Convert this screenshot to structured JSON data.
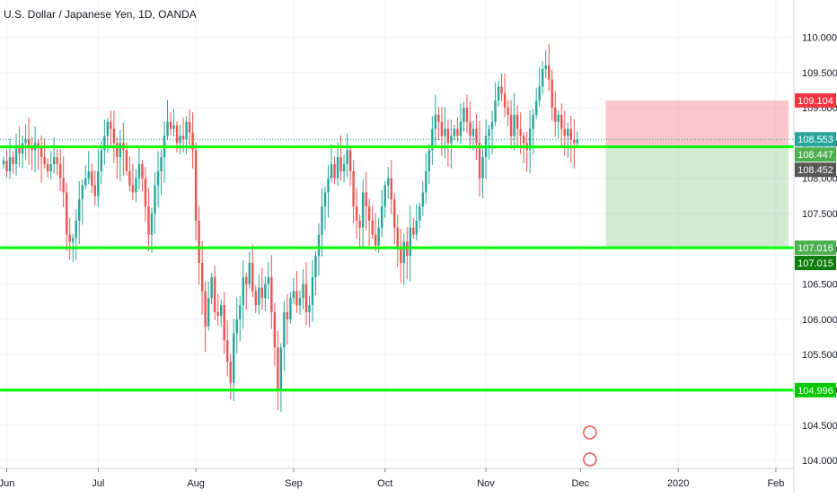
{
  "header": {
    "title": "U.S. Dollar / Japanese Yen, 1D, OANDA"
  },
  "chart_data": {
    "type": "candlestick",
    "title": "U.S. Dollar / Japanese Yen, 1D, OANDA",
    "ylim": [
      103.95,
      110.35
    ],
    "y_ticks": [
      "110.000",
      "109.500",
      "109.000",
      "108.500",
      "108.000",
      "107.500",
      "107.000",
      "106.500",
      "106.000",
      "105.500",
      "105.000",
      "104.500",
      "104.000"
    ],
    "x_ticks": [
      {
        "label": "Jun",
        "day": 1
      },
      {
        "label": "Jul",
        "day": 30
      },
      {
        "label": "Aug",
        "day": 61
      },
      {
        "label": "Sep",
        "day": 92
      },
      {
        "label": "Oct",
        "day": 121
      },
      {
        "label": "Nov",
        "day": 153
      },
      {
        "label": "Dec",
        "day": 183
      },
      {
        "label": "2020",
        "day": 214
      },
      {
        "label": "Feb",
        "day": 245
      }
    ],
    "grid": true,
    "horizontal_levels": [
      {
        "price": 108.447,
        "label": "108.447",
        "color": "#00ff00"
      },
      {
        "price": 107.015,
        "label": "107.015",
        "color": "#00ff00"
      },
      {
        "price": 104.996,
        "label": "104.996",
        "color": "#00ff00"
      }
    ],
    "current_price": {
      "price": 108.553,
      "label": "108.553",
      "color": "#26a69a"
    },
    "position": {
      "type": "short",
      "start_day": 191,
      "end_day": 258,
      "entry": 108.452,
      "stop": 109.104,
      "target": 107.016,
      "stop_label": "109.104",
      "entry_label": "108.452",
      "target_label": "107.016",
      "stop_color": "#f23645",
      "entry_color": "#555555",
      "target_color": "#22ab94"
    },
    "price_labels": [
      {
        "label": "109.104",
        "price": 109.104,
        "color": "#f23645"
      },
      {
        "label": "108.553",
        "price": 108.553,
        "color": "#26a69a"
      },
      {
        "label": "108.447",
        "price": 108.447,
        "color": "#4caf50"
      },
      {
        "label": "108.452",
        "price": 108.452,
        "color": "#555555"
      },
      {
        "label": "107.016",
        "price": 107.016,
        "color": "#4caf50"
      },
      {
        "label": "107.015",
        "price": 107.015,
        "color": "#0b7d0b"
      },
      {
        "label": "104.996",
        "price": 104.996,
        "color": "#00c800"
      }
    ],
    "candle_colors": {
      "up": "#26a69a",
      "down": "#ef5350"
    },
    "closes": [
      [
        0,
        108.25
      ],
      [
        1,
        108.1
      ],
      [
        2,
        108.3
      ],
      [
        3,
        108.2
      ],
      [
        4,
        108.45
      ],
      [
        5,
        108.35
      ],
      [
        6,
        108.5
      ],
      [
        7,
        108.55
      ],
      [
        8,
        108.45
      ],
      [
        9,
        108.4
      ],
      [
        10,
        108.5
      ],
      [
        11,
        108.45
      ],
      [
        12,
        108.3
      ],
      [
        13,
        108.2
      ],
      [
        14,
        108.1
      ],
      [
        15,
        108.2
      ],
      [
        16,
        108.3
      ],
      [
        17,
        108.2
      ],
      [
        18,
        108.0
      ],
      [
        19,
        107.8
      ],
      [
        20,
        107.2
      ],
      [
        21,
        107.1
      ],
      [
        22,
        107.15
      ],
      [
        23,
        107.4
      ],
      [
        24,
        107.7
      ],
      [
        25,
        107.9
      ],
      [
        26,
        108.0
      ],
      [
        27,
        108.1
      ],
      [
        28,
        107.9
      ],
      [
        29,
        107.75
      ],
      [
        30,
        108.1
      ],
      [
        31,
        108.4
      ],
      [
        32,
        108.6
      ],
      [
        33,
        108.8
      ],
      [
        34,
        108.7
      ],
      [
        35,
        108.5
      ],
      [
        36,
        108.3
      ],
      [
        37,
        108.5
      ],
      [
        38,
        108.4
      ],
      [
        39,
        108.1
      ],
      [
        40,
        107.9
      ],
      [
        41,
        107.8
      ],
      [
        42,
        108.0
      ],
      [
        43,
        108.2
      ],
      [
        44,
        108.0
      ],
      [
        45,
        107.6
      ],
      [
        46,
        107.2
      ],
      [
        47,
        107.5
      ],
      [
        48,
        107.9
      ],
      [
        49,
        108.1
      ],
      [
        50,
        108.3
      ],
      [
        51,
        108.6
      ],
      [
        52,
        108.8
      ],
      [
        53,
        108.7
      ],
      [
        54,
        108.75
      ],
      [
        55,
        108.5
      ],
      [
        56,
        108.6
      ],
      [
        57,
        108.55
      ],
      [
        58,
        108.8
      ],
      [
        59,
        108.65
      ],
      [
        60,
        108.4
      ],
      [
        61,
        107.4
      ],
      [
        62,
        106.8
      ],
      [
        63,
        106.4
      ],
      [
        64,
        105.9
      ],
      [
        65,
        106.3
      ],
      [
        66,
        106.6
      ],
      [
        67,
        106.1
      ],
      [
        68,
        106.05
      ],
      [
        69,
        106.2
      ],
      [
        70,
        105.7
      ],
      [
        71,
        105.4
      ],
      [
        72,
        105.1
      ],
      [
        73,
        105.8
      ],
      [
        74,
        106.0
      ],
      [
        75,
        106.2
      ],
      [
        76,
        106.6
      ],
      [
        77,
        106.5
      ],
      [
        78,
        106.8
      ],
      [
        79,
        106.4
      ],
      [
        80,
        106.2
      ],
      [
        81,
        106.45
      ],
      [
        82,
        106.3
      ],
      [
        83,
        106.5
      ],
      [
        84,
        106.6
      ],
      [
        85,
        106.1
      ],
      [
        86,
        105.6
      ],
      [
        87,
        104.996
      ],
      [
        88,
        105.6
      ],
      [
        89,
        106.1
      ],
      [
        90,
        106.0
      ],
      [
        91,
        106.3
      ],
      [
        92,
        106.4
      ],
      [
        93,
        106.2
      ],
      [
        94,
        106.3
      ],
      [
        95,
        106.5
      ],
      [
        96,
        106.1
      ],
      [
        97,
        106.2
      ],
      [
        98,
        106.6
      ],
      [
        99,
        106.9
      ],
      [
        100,
        107.2
      ],
      [
        101,
        107.6
      ],
      [
        102,
        107.8
      ],
      [
        103,
        108.0
      ],
      [
        104,
        108.2
      ],
      [
        105,
        108.0
      ],
      [
        106,
        108.3
      ],
      [
        107,
        108.1
      ],
      [
        108,
        108.2
      ],
      [
        109,
        108.4
      ],
      [
        110,
        108.1
      ],
      [
        111,
        107.6
      ],
      [
        112,
        107.4
      ],
      [
        113,
        107.3
      ],
      [
        114,
        107.8
      ],
      [
        115,
        107.6
      ],
      [
        116,
        107.4
      ],
      [
        117,
        107.2
      ],
      [
        118,
        107.05
      ],
      [
        119,
        107.3
      ],
      [
        120,
        107.6
      ],
      [
        121,
        107.9
      ],
      [
        122,
        108.0
      ],
      [
        123,
        107.7
      ],
      [
        124,
        107.3
      ],
      [
        125,
        107.0
      ],
      [
        126,
        106.8
      ],
      [
        127,
        107.1
      ],
      [
        128,
        106.9
      ],
      [
        129,
        107.3
      ],
      [
        130,
        107.2
      ],
      [
        131,
        107.4
      ],
      [
        132,
        107.6
      ],
      [
        133,
        107.8
      ],
      [
        134,
        108.1
      ],
      [
        135,
        108.4
      ],
      [
        136,
        108.7
      ],
      [
        137,
        108.9
      ],
      [
        138,
        108.8
      ],
      [
        139,
        108.6
      ],
      [
        140,
        108.7
      ],
      [
        141,
        108.5
      ],
      [
        142,
        108.6
      ],
      [
        143,
        108.7
      ],
      [
        144,
        108.6
      ],
      [
        145,
        108.8
      ],
      [
        146,
        109.0
      ],
      [
        147,
        108.8
      ],
      [
        148,
        108.6
      ],
      [
        149,
        108.7
      ],
      [
        150,
        108.5
      ],
      [
        151,
        108.0
      ],
      [
        152,
        108.3
      ],
      [
        153,
        108.6
      ],
      [
        154,
        108.7
      ],
      [
        155,
        108.8
      ],
      [
        156,
        109.1
      ],
      [
        157,
        109.3
      ],
      [
        158,
        109.2
      ],
      [
        159,
        109.0
      ],
      [
        160,
        108.9
      ],
      [
        161,
        108.6
      ],
      [
        162,
        108.9
      ],
      [
        163,
        108.7
      ],
      [
        164,
        108.6
      ],
      [
        165,
        108.5
      ],
      [
        166,
        108.4
      ],
      [
        167,
        108.7
      ],
      [
        168,
        108.9
      ],
      [
        169,
        109.1
      ],
      [
        170,
        109.3
      ],
      [
        171,
        109.55
      ],
      [
        172,
        109.6
      ],
      [
        173,
        109.4
      ],
      [
        174,
        109.0
      ],
      [
        175,
        108.8
      ],
      [
        176,
        108.9
      ],
      [
        177,
        108.7
      ],
      [
        178,
        108.6
      ],
      [
        179,
        108.7
      ],
      [
        180,
        108.55
      ],
      [
        181,
        108.5
      ],
      [
        182,
        108.553
      ]
    ]
  }
}
